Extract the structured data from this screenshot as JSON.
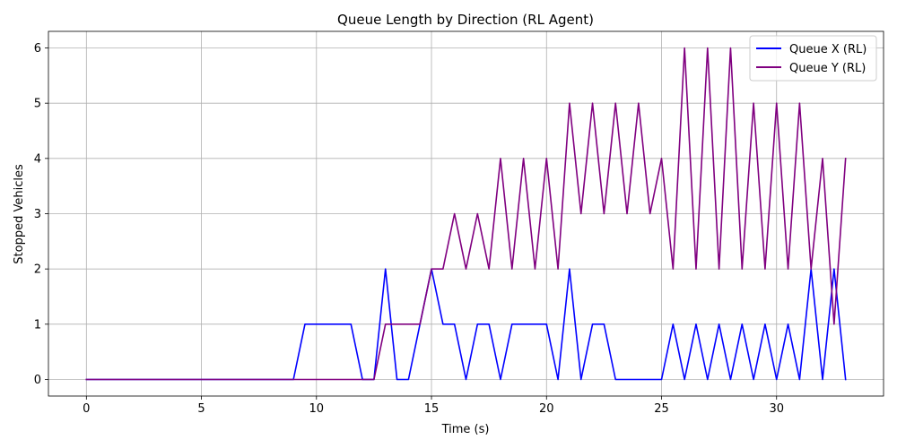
{
  "chart_data": {
    "type": "line",
    "title": "Queue Length by Direction (RL Agent)",
    "xlabel": "Time (s)",
    "ylabel": "Stopped Vehicles",
    "xlim": [
      -1.65,
      34.65
    ],
    "ylim": [
      -0.3,
      6.3
    ],
    "xticks": [
      0,
      5,
      10,
      15,
      20,
      25,
      30
    ],
    "yticks": [
      0,
      1,
      2,
      3,
      4,
      5,
      6
    ],
    "grid": true,
    "legend_position": "top-right",
    "x": [
      0,
      0.5,
      1,
      1.5,
      2,
      2.5,
      3,
      3.5,
      4,
      4.5,
      5,
      5.5,
      6,
      6.5,
      7,
      7.5,
      8,
      8.5,
      9,
      9.5,
      10,
      10.5,
      11,
      11.5,
      12,
      12.5,
      13,
      13.5,
      14,
      14.5,
      15,
      15.5,
      16,
      16.5,
      17,
      17.5,
      18,
      18.5,
      19,
      19.5,
      20,
      20.5,
      21,
      21.5,
      22,
      22.5,
      23,
      23.5,
      24,
      24.5,
      25,
      25.5,
      26,
      26.5,
      27,
      27.5,
      28,
      28.5,
      29,
      29.5,
      30,
      30.5,
      31,
      31.5,
      32,
      32.5,
      33
    ],
    "series": [
      {
        "name": "Queue X (RL)",
        "color": "#0000ff",
        "values": [
          0,
          0,
          0,
          0,
          0,
          0,
          0,
          0,
          0,
          0,
          0,
          0,
          0,
          0,
          0,
          0,
          0,
          0,
          0,
          1,
          1,
          1,
          1,
          1,
          0,
          0,
          2,
          0,
          0,
          1,
          2,
          1,
          1,
          0,
          1,
          1,
          0,
          1,
          1,
          1,
          1,
          0,
          2,
          0,
          1,
          1,
          0,
          0,
          0,
          0,
          0,
          1,
          0,
          1,
          0,
          1,
          0,
          1,
          0,
          1,
          0,
          1,
          0,
          2,
          0,
          2,
          0
        ]
      },
      {
        "name": "Queue Y (RL)",
        "color": "#800080",
        "values": [
          0,
          0,
          0,
          0,
          0,
          0,
          0,
          0,
          0,
          0,
          0,
          0,
          0,
          0,
          0,
          0,
          0,
          0,
          0,
          0,
          0,
          0,
          0,
          0,
          0,
          0,
          1,
          1,
          1,
          1,
          2,
          2,
          3,
          2,
          3,
          2,
          4,
          2,
          4,
          2,
          4,
          2,
          5,
          3,
          5,
          3,
          5,
          3,
          5,
          3,
          4,
          2,
          6,
          2,
          6,
          2,
          6,
          2,
          5,
          2,
          5,
          2,
          5,
          2,
          4,
          1,
          4
        ]
      }
    ]
  }
}
